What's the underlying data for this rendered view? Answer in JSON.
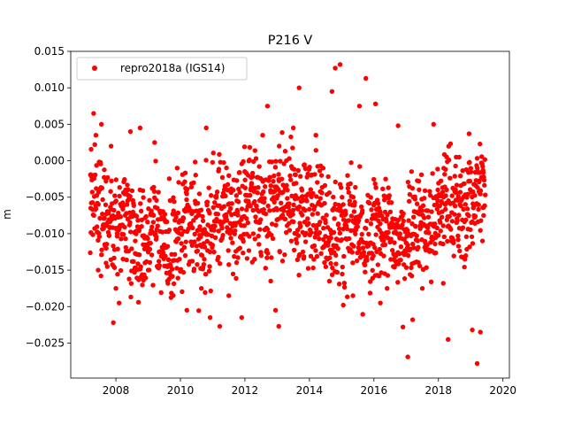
{
  "chart_data": {
    "type": "scatter",
    "title": "P216 V",
    "xlabel": "",
    "ylabel": "m",
    "xlim": [
      2006.6,
      2020.2
    ],
    "ylim": [
      -0.0298,
      0.015
    ],
    "x_ticks": [
      2008,
      2010,
      2012,
      2014,
      2016,
      2018,
      2020
    ],
    "x_tick_labels": [
      "2008",
      "2010",
      "2012",
      "2014",
      "2016",
      "2018",
      "2020"
    ],
    "y_ticks": [
      0.015,
      0.01,
      0.005,
      0.0,
      -0.005,
      -0.01,
      -0.015,
      -0.02,
      -0.025
    ],
    "y_tick_labels": [
      "0.015",
      "0.010",
      "0.005",
      "0.000",
      "−0.005",
      "−0.010",
      "−0.015",
      "−0.020",
      "−0.025"
    ],
    "grid": false,
    "legend_position": "upper-left",
    "colors": {
      "series": "#ff0000",
      "axes": "#000000",
      "background": "#ffffff"
    },
    "series": [
      {
        "name": "repro2018a (IGS14)",
        "marker": "circle",
        "x_range": [
          2007.2,
          2019.45
        ],
        "values": [
          [
            2007.22,
            -0.0065
          ],
          [
            2007.3,
            -0.002
          ],
          [
            2007.38,
            0.0035
          ],
          [
            2007.45,
            -0.015
          ],
          [
            2007.55,
            0.005
          ],
          [
            2007.7,
            -0.012
          ],
          [
            2007.85,
            0.002
          ],
          [
            2007.92,
            -0.0222
          ],
          [
            2008.0,
            -0.0175
          ],
          [
            2008.1,
            -0.0195
          ],
          [
            2008.3,
            -0.004
          ],
          [
            2008.45,
            0.004
          ],
          [
            2008.6,
            -0.011
          ],
          [
            2008.75,
            0.0045
          ],
          [
            2009.0,
            -0.015
          ],
          [
            2009.2,
            0.0025
          ],
          [
            2009.4,
            -0.008
          ],
          [
            2009.6,
            -0.0165
          ],
          [
            2009.9,
            -0.001
          ],
          [
            2010.15,
            -0.013
          ],
          [
            2010.2,
            -0.0205
          ],
          [
            2010.55,
            -0.0075
          ],
          [
            2010.65,
            -0.0175
          ],
          [
            2010.8,
            0.0045
          ],
          [
            2010.92,
            -0.0215
          ],
          [
            2011.1,
            -0.005
          ],
          [
            2011.22,
            -0.0227
          ],
          [
            2011.5,
            -0.0185
          ],
          [
            2011.75,
            -0.0055
          ],
          [
            2011.9,
            -0.0215
          ],
          [
            2012.1,
            -0.002
          ],
          [
            2012.3,
            -0.0135
          ],
          [
            2012.55,
            0.0035
          ],
          [
            2012.7,
            0.0075
          ],
          [
            2012.8,
            -0.0165
          ],
          [
            2012.95,
            -0.0205
          ],
          [
            2013.05,
            -0.0227
          ],
          [
            2013.25,
            -0.008
          ],
          [
            2013.5,
            0.0045
          ],
          [
            2013.68,
            0.01
          ],
          [
            2013.8,
            -0.0125
          ],
          [
            2014.05,
            -0.002
          ],
          [
            2014.2,
            0.0035
          ],
          [
            2014.5,
            -0.0085
          ],
          [
            2014.7,
            0.0095
          ],
          [
            2014.8,
            0.0127
          ],
          [
            2014.95,
            0.0132
          ],
          [
            2015.05,
            -0.0198
          ],
          [
            2015.35,
            -0.0185
          ],
          [
            2015.55,
            0.0075
          ],
          [
            2015.75,
            0.0113
          ],
          [
            2016.05,
            0.0078
          ],
          [
            2016.2,
            -0.0195
          ],
          [
            2016.6,
            -0.0145
          ],
          [
            2016.75,
            0.0048
          ],
          [
            2016.9,
            -0.0228
          ],
          [
            2017.05,
            -0.0269
          ],
          [
            2017.2,
            -0.0218
          ],
          [
            2017.5,
            -0.0175
          ],
          [
            2017.85,
            0.005
          ],
          [
            2018.15,
            -0.0168
          ],
          [
            2018.3,
            -0.0245
          ],
          [
            2018.55,
            0.0005
          ],
          [
            2018.95,
            0.0037
          ],
          [
            2019.05,
            -0.0232
          ],
          [
            2019.2,
            -0.0278
          ],
          [
            2019.3,
            -0.0235
          ],
          [
            2019.4,
            -0.0075
          ]
        ]
      }
    ]
  }
}
